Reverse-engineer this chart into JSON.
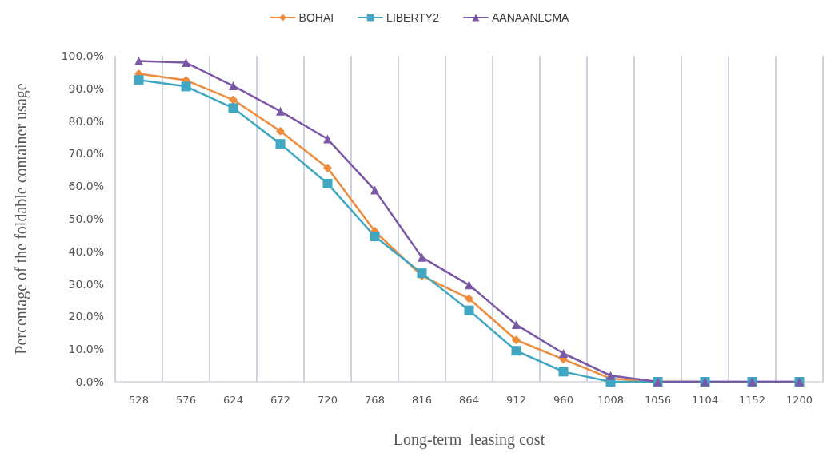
{
  "chart_data": {
    "type": "line",
    "xlabel": "Long-term  leasing cost",
    "ylabel": "Percentage of the foldable container usage",
    "categories": [
      "528",
      "576",
      "624",
      "672",
      "720",
      "768",
      "816",
      "864",
      "912",
      "960",
      "1008",
      "1056",
      "1104",
      "1152",
      "1200"
    ],
    "series": [
      {
        "name": "BOHAI",
        "color": "#ef8c3c",
        "marker": "diamond",
        "values": [
          94.5,
          92.5,
          86.5,
          76.9,
          65.6,
          46.2,
          32.5,
          25.5,
          12.8,
          6.9,
          1,
          0,
          0,
          null,
          null
        ]
      },
      {
        "name": "LIBERTY2",
        "color": "#40a6c1",
        "marker": "square",
        "values": [
          92.6,
          90.6,
          84.0,
          73.0,
          60.8,
          44.6,
          33.3,
          21.9,
          9.5,
          3.1,
          0,
          0,
          0,
          0,
          0
        ]
      },
      {
        "name": "AANAANLCMA",
        "color": "#7b58a6",
        "marker": "triangle",
        "values": [
          98.4,
          97.9,
          90.8,
          83.0,
          74.5,
          58.8,
          38.2,
          29.7,
          17.5,
          8.7,
          1.9,
          0,
          0,
          0,
          0
        ]
      }
    ],
    "ylim": [
      0,
      100
    ],
    "yticks": [
      {
        "value": 0,
        "label": "0.0%"
      },
      {
        "value": 10,
        "label": "10.0%"
      },
      {
        "value": 20,
        "label": "20.0%"
      },
      {
        "value": 30,
        "label": "30.0%"
      },
      {
        "value": 40,
        "label": "40.0%"
      },
      {
        "value": 50,
        "label": "50.0%"
      },
      {
        "value": 60,
        "label": "60.0%"
      },
      {
        "value": 70,
        "label": "70.0%"
      },
      {
        "value": 80,
        "label": "80.0%"
      },
      {
        "value": 90,
        "label": "90.0%"
      },
      {
        "value": 100,
        "label": "100.0%"
      }
    ],
    "grid": "x",
    "legend": "top",
    "line_style": "solid"
  }
}
